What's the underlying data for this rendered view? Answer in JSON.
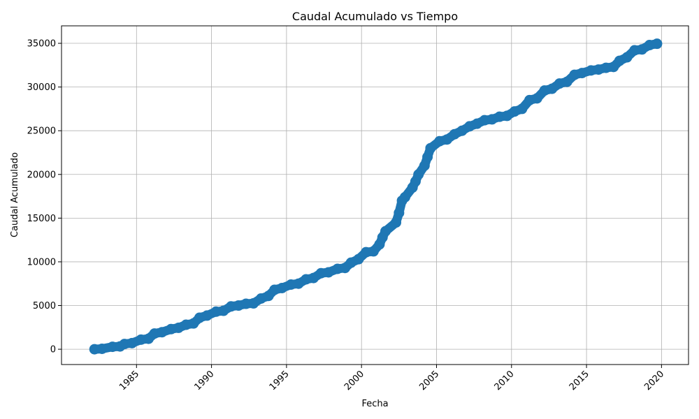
{
  "chart_data": {
    "type": "scatter",
    "title": "Caudal Acumulado vs Tiempo",
    "xlabel": "Fecha",
    "ylabel": "Caudal Acumulado",
    "xlim": [
      1980.0,
      2021.8
    ],
    "ylim": [
      -1750,
      37000
    ],
    "xticks": [
      1985,
      1990,
      1995,
      2000,
      2005,
      2010,
      2015,
      2020
    ],
    "yticks": [
      0,
      5000,
      10000,
      15000,
      20000,
      25000,
      30000,
      35000
    ],
    "grid": true,
    "marker_color": "#1f77b4",
    "series": [
      {
        "points": [
          [
            1982.2,
            0
          ],
          [
            1982.7,
            50
          ],
          [
            1983.4,
            280
          ],
          [
            1983.9,
            320
          ],
          [
            1984.2,
            600
          ],
          [
            1984.7,
            700
          ],
          [
            1985.3,
            1100
          ],
          [
            1985.8,
            1200
          ],
          [
            1986.2,
            1800
          ],
          [
            1986.7,
            1950
          ],
          [
            1987.3,
            2300
          ],
          [
            1987.8,
            2450
          ],
          [
            1988.3,
            2800
          ],
          [
            1988.8,
            2950
          ],
          [
            1989.2,
            3600
          ],
          [
            1989.7,
            3850
          ],
          [
            1990.3,
            4300
          ],
          [
            1990.8,
            4400
          ],
          [
            1991.3,
            4900
          ],
          [
            1991.8,
            5000
          ],
          [
            1992.3,
            5200
          ],
          [
            1992.8,
            5250
          ],
          [
            1993.3,
            5800
          ],
          [
            1993.8,
            6100
          ],
          [
            1994.2,
            6800
          ],
          [
            1994.7,
            7000
          ],
          [
            1995.3,
            7400
          ],
          [
            1995.8,
            7500
          ],
          [
            1996.3,
            8000
          ],
          [
            1996.8,
            8150
          ],
          [
            1997.3,
            8700
          ],
          [
            1997.8,
            8800
          ],
          [
            1998.4,
            9200
          ],
          [
            1998.9,
            9300
          ],
          [
            1999.3,
            9900
          ],
          [
            1999.8,
            10300
          ],
          [
            2000.3,
            11100
          ],
          [
            2000.8,
            11200
          ],
          [
            2001.2,
            12000
          ],
          [
            2001.4,
            12800
          ],
          [
            2001.6,
            13500
          ],
          [
            2002.3,
            14500
          ],
          [
            2002.5,
            15600
          ],
          [
            2002.7,
            17000
          ],
          [
            2002.9,
            17400
          ],
          [
            2003.4,
            18500
          ],
          [
            2003.6,
            19200
          ],
          [
            2003.8,
            20000
          ],
          [
            2004.2,
            21000
          ],
          [
            2004.4,
            22000
          ],
          [
            2004.6,
            23000
          ],
          [
            2005.2,
            23800
          ],
          [
            2005.7,
            24000
          ],
          [
            2006.2,
            24600
          ],
          [
            2006.7,
            25000
          ],
          [
            2007.2,
            25500
          ],
          [
            2007.7,
            25800
          ],
          [
            2008.2,
            26200
          ],
          [
            2008.7,
            26300
          ],
          [
            2009.2,
            26600
          ],
          [
            2009.7,
            26700
          ],
          [
            2010.2,
            27200
          ],
          [
            2010.7,
            27500
          ],
          [
            2011.2,
            28500
          ],
          [
            2011.7,
            28700
          ],
          [
            2012.2,
            29600
          ],
          [
            2012.7,
            29800
          ],
          [
            2013.2,
            30400
          ],
          [
            2013.7,
            30600
          ],
          [
            2014.2,
            31400
          ],
          [
            2014.7,
            31600
          ],
          [
            2015.3,
            31900
          ],
          [
            2015.8,
            32000
          ],
          [
            2016.3,
            32200
          ],
          [
            2016.8,
            32300
          ],
          [
            2017.2,
            33000
          ],
          [
            2017.7,
            33400
          ],
          [
            2018.2,
            34200
          ],
          [
            2018.7,
            34300
          ],
          [
            2019.2,
            34800
          ],
          [
            2019.7,
            34950
          ]
        ]
      }
    ]
  }
}
